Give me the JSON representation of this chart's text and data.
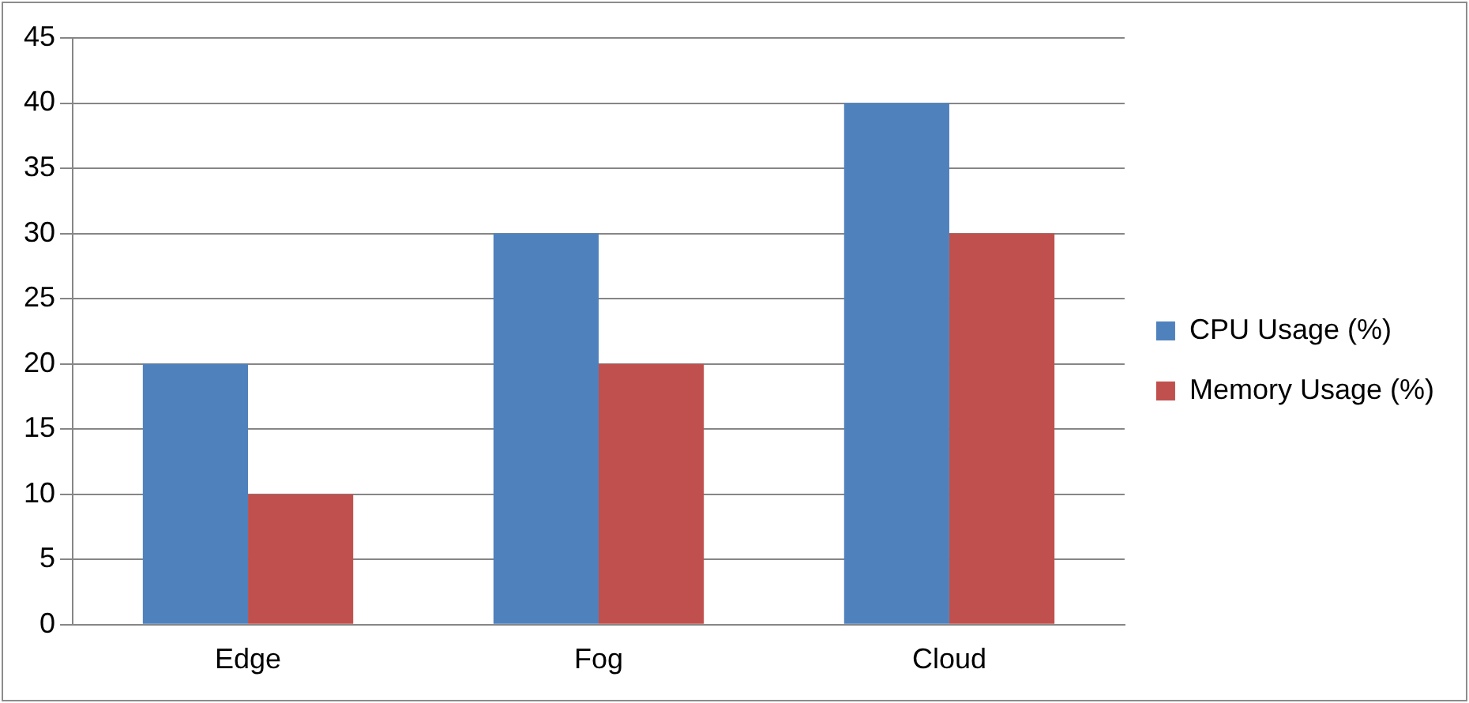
{
  "chart_data": {
    "type": "bar",
    "categories": [
      "Edge",
      "Fog",
      "Cloud"
    ],
    "series": [
      {
        "name": "CPU Usage (%)",
        "color": "#4f81bd",
        "values": [
          20,
          30,
          40
        ]
      },
      {
        "name": "Memory Usage (%)",
        "color": "#c0504d",
        "values": [
          10,
          20,
          30
        ]
      }
    ],
    "ylim": [
      0,
      45
    ],
    "yticks": [
      0,
      5,
      10,
      15,
      20,
      25,
      30,
      35,
      40,
      45
    ],
    "grid": "y",
    "legend": "right"
  }
}
